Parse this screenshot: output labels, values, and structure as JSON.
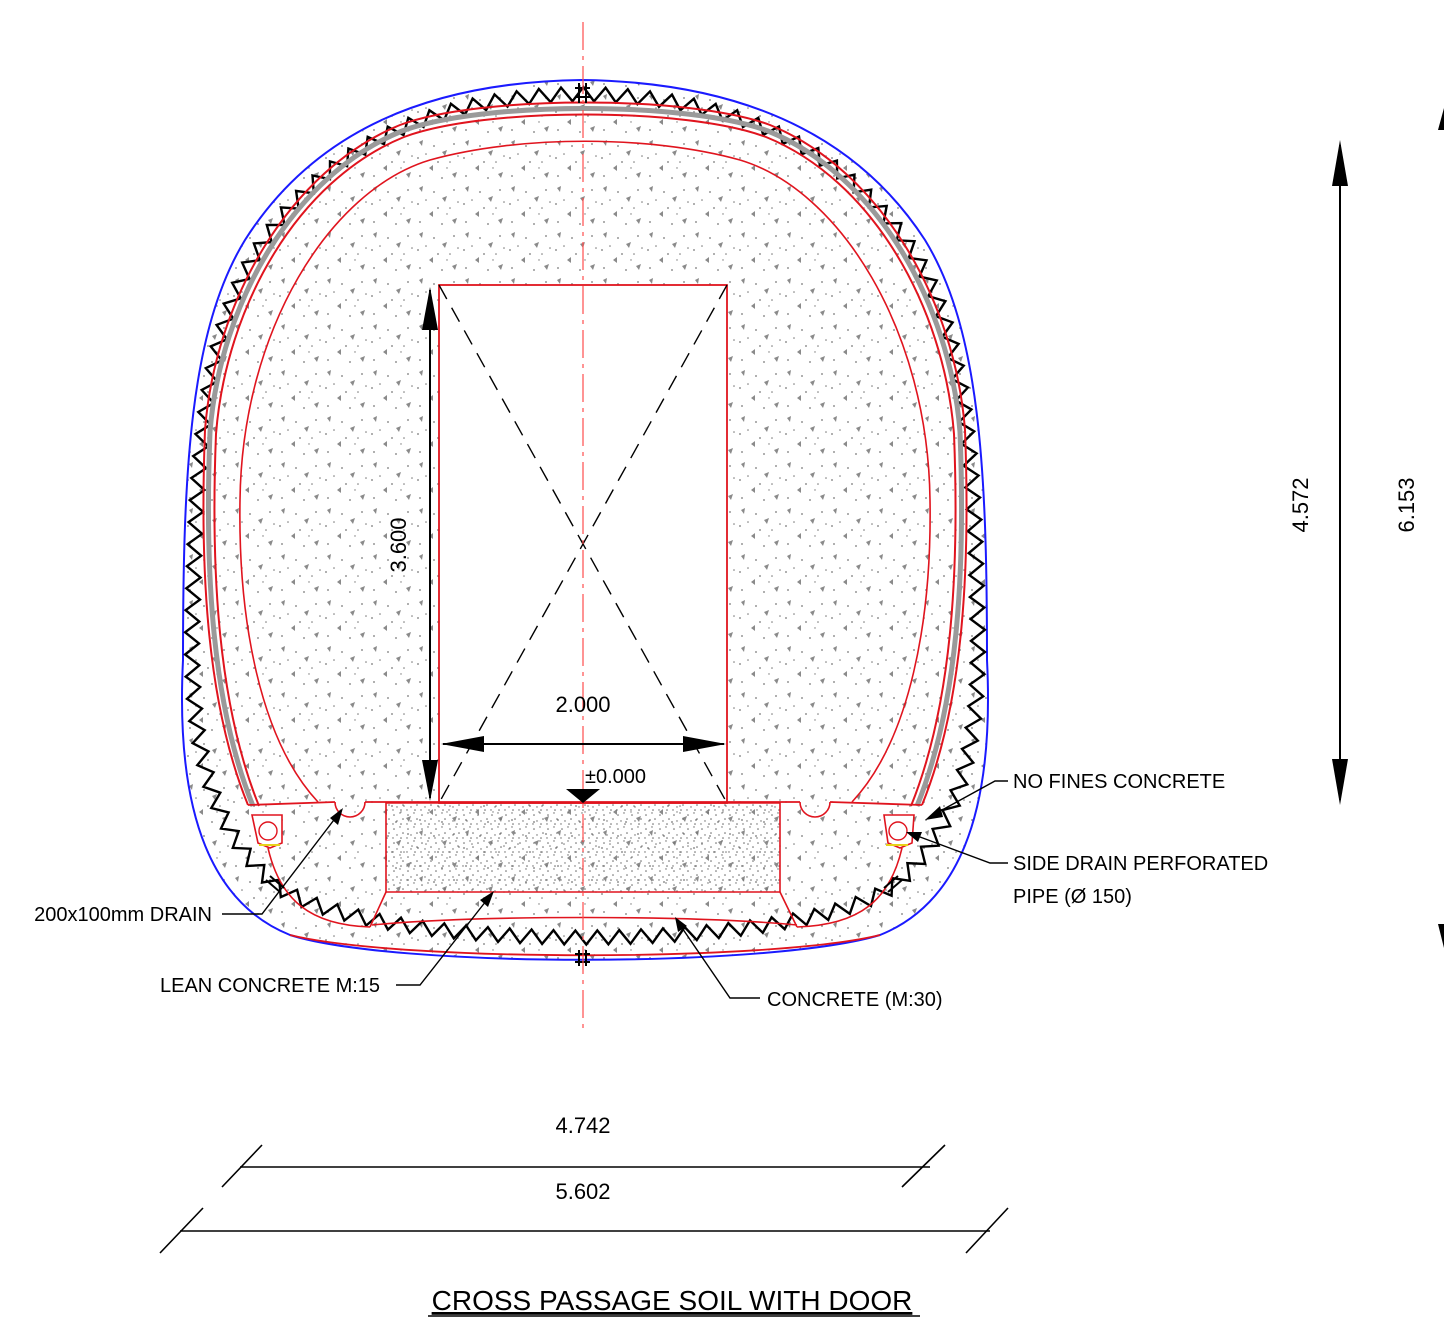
{
  "title": "CROSS PASSAGE SOIL WITH DOOR",
  "dimensions": {
    "door_height": "3.600",
    "door_width": "2.000",
    "floor_level": "±0.000",
    "inner_height": "4.572",
    "outer_height": "6.153",
    "inner_width": "4.742",
    "outer_width": "5.602"
  },
  "labels": {
    "no_fines": "NO FINES CONCRETE",
    "side_drain_line1": "SIDE DRAIN PERFORATED",
    "side_drain_line2": "PIPE (Ø 150)",
    "drain": "200x100mm DRAIN",
    "lean_concrete": "LEAN CONCRETE M:15",
    "concrete": "CONCRETE (M:30)"
  },
  "colors": {
    "outline_red": "#e0141e",
    "excavation_blue": "#1a1aff",
    "membrane_gray": "#9a9a9a",
    "speckle": "#7a7a7a",
    "centerline": "#ff4d4d"
  }
}
